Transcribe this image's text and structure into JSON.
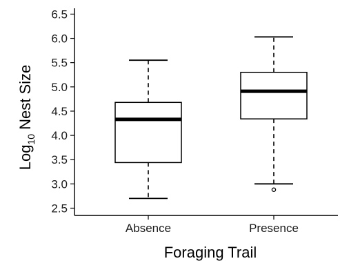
{
  "chart_data": {
    "type": "boxplot",
    "xlabel": "Foraging Trail",
    "ylabel_main": "Log",
    "ylabel_sub": "10",
    "ylabel_rest": " Nest Size",
    "ylim": [
      2.35,
      6.62
    ],
    "yticks": [
      "2.5",
      "3.0",
      "3.5",
      "4.0",
      "4.5",
      "5.0",
      "5.5",
      "6.0",
      "6.5"
    ],
    "categories": [
      "Absence",
      "Presence"
    ],
    "boxes": [
      {
        "category": "Absence",
        "min": 2.7,
        "q1": 3.44,
        "median": 4.33,
        "q3": 4.68,
        "max": 5.55,
        "outliers": []
      },
      {
        "category": "Presence",
        "min": 3.0,
        "q1": 4.34,
        "median": 4.91,
        "q3": 5.3,
        "max": 6.03,
        "outliers": [
          2.88
        ]
      }
    ],
    "grid": false,
    "legend": "none"
  }
}
